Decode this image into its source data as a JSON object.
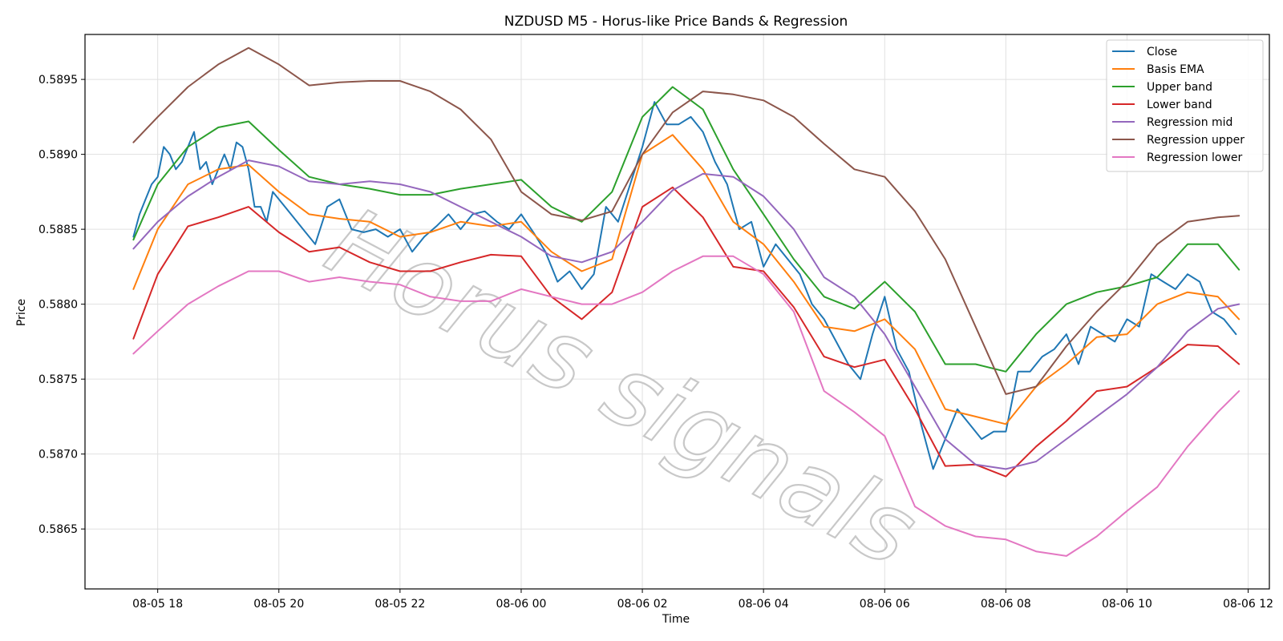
{
  "chart_data": {
    "type": "line",
    "title": "NZDUSD M5 - Horus-like Price Bands & Regression",
    "xlabel": "Time",
    "ylabel": "Price",
    "xlim_hours": [
      -1.2,
      18.35
    ],
    "ylim": [
      0.5861,
      0.5898
    ],
    "x_tick_labels": [
      "08-05 18",
      "08-05 20",
      "08-05 22",
      "08-06 00",
      "08-06 02",
      "08-06 04",
      "08-06 06",
      "08-06 08",
      "08-06 10",
      "08-06 12"
    ],
    "x_tick_hours": [
      0,
      2,
      4,
      6,
      8,
      10,
      12,
      14,
      16,
      18
    ],
    "y_ticks": [
      0.5865,
      0.587,
      0.5875,
      0.588,
      0.5885,
      0.589,
      0.5895
    ],
    "y_tick_labels": [
      "0.5865",
      "0.5870",
      "0.5875",
      "0.5880",
      "0.5885",
      "0.5890",
      "0.5895"
    ],
    "grid": true,
    "legend_position": "top-right",
    "watermark": "Horus signals",
    "series": [
      {
        "name": "Close",
        "color": "#1f77b4",
        "x": [
          -0.4,
          -0.3,
          -0.2,
          -0.1,
          0,
          0.1,
          0.2,
          0.3,
          0.4,
          0.5,
          0.6,
          0.7,
          0.8,
          0.9,
          1.0,
          1.1,
          1.2,
          1.3,
          1.4,
          1.5,
          1.6,
          1.7,
          1.8,
          1.9,
          2.0,
          2.2,
          2.4,
          2.6,
          2.8,
          3.0,
          3.2,
          3.4,
          3.6,
          3.8,
          4.0,
          4.2,
          4.4,
          4.6,
          4.8,
          5.0,
          5.2,
          5.4,
          5.6,
          5.8,
          6.0,
          6.2,
          6.4,
          6.6,
          6.8,
          7.0,
          7.2,
          7.4,
          7.6,
          7.8,
          8.0,
          8.2,
          8.4,
          8.6,
          8.8,
          9.0,
          9.2,
          9.4,
          9.6,
          9.8,
          10.0,
          10.2,
          10.4,
          10.6,
          10.8,
          11.0,
          11.2,
          11.4,
          11.6,
          11.8,
          12.0,
          12.2,
          12.4,
          12.6,
          12.8,
          13.0,
          13.2,
          13.4,
          13.6,
          13.8,
          14.0,
          14.2,
          14.4,
          14.6,
          14.8,
          15.0,
          15.2,
          15.4,
          15.6,
          15.8,
          16.0,
          16.2,
          16.4,
          16.6,
          16.8,
          17.0,
          17.2,
          17.4,
          17.6,
          17.8
        ],
        "values": [
          0.58845,
          0.5886,
          0.5887,
          0.5888,
          0.58885,
          0.58905,
          0.589,
          0.5889,
          0.58895,
          0.58905,
          0.58915,
          0.5889,
          0.58895,
          0.5888,
          0.5889,
          0.589,
          0.5889,
          0.58908,
          0.58905,
          0.5889,
          0.58865,
          0.58865,
          0.58855,
          0.58875,
          0.5887,
          0.5886,
          0.5885,
          0.5884,
          0.58865,
          0.5887,
          0.5885,
          0.58848,
          0.5885,
          0.58845,
          0.5885,
          0.58835,
          0.58845,
          0.58852,
          0.5886,
          0.5885,
          0.5886,
          0.58862,
          0.58855,
          0.5885,
          0.5886,
          0.58848,
          0.58835,
          0.58815,
          0.58822,
          0.5881,
          0.5882,
          0.58865,
          0.58855,
          0.5888,
          0.58905,
          0.58935,
          0.5892,
          0.5892,
          0.58925,
          0.58915,
          0.58895,
          0.5888,
          0.5885,
          0.58855,
          0.58825,
          0.5884,
          0.5883,
          0.5882,
          0.588,
          0.5879,
          0.58775,
          0.5876,
          0.5875,
          0.5878,
          0.58805,
          0.5877,
          0.58755,
          0.5872,
          0.5869,
          0.5871,
          0.5873,
          0.5872,
          0.5871,
          0.58715,
          0.58715,
          0.58755,
          0.58755,
          0.58765,
          0.5877,
          0.5878,
          0.5876,
          0.58785,
          0.5878,
          0.58775,
          0.5879,
          0.58785,
          0.5882,
          0.58815,
          0.5881,
          0.5882,
          0.58815,
          0.58795,
          0.5879,
          0.5878
        ]
      },
      {
        "name": "Basis EMA",
        "color": "#ff7f0e",
        "x": [
          -0.4,
          0,
          0.5,
          1.0,
          1.5,
          2.0,
          2.5,
          3.0,
          3.5,
          4.0,
          4.5,
          5.0,
          5.5,
          6.0,
          6.5,
          7.0,
          7.5,
          8.0,
          8.5,
          9.0,
          9.5,
          10.0,
          10.5,
          11.0,
          11.5,
          12.0,
          12.5,
          13.0,
          13.5,
          14.0,
          14.5,
          15.0,
          15.5,
          16.0,
          16.5,
          17.0,
          17.5,
          17.85
        ],
        "values": [
          0.5881,
          0.5885,
          0.5888,
          0.5889,
          0.58893,
          0.58875,
          0.5886,
          0.58857,
          0.58855,
          0.58845,
          0.58848,
          0.58855,
          0.58852,
          0.58855,
          0.58835,
          0.58822,
          0.5883,
          0.589,
          0.58913,
          0.5889,
          0.58855,
          0.5884,
          0.58815,
          0.58785,
          0.58782,
          0.5879,
          0.5877,
          0.5873,
          0.58725,
          0.5872,
          0.58745,
          0.5876,
          0.58778,
          0.5878,
          0.588,
          0.58808,
          0.58805,
          0.5879
        ]
      },
      {
        "name": "Upper band",
        "color": "#2ca02c",
        "x": [
          -0.4,
          0,
          0.5,
          1.0,
          1.5,
          2.0,
          2.5,
          3.0,
          3.5,
          4.0,
          4.5,
          5.0,
          5.5,
          6.0,
          6.5,
          7.0,
          7.5,
          8.0,
          8.5,
          9.0,
          9.5,
          10.0,
          10.5,
          11.0,
          11.5,
          12.0,
          12.5,
          13.0,
          13.5,
          14.0,
          14.5,
          15.0,
          15.5,
          16.0,
          16.5,
          17.0,
          17.5,
          17.85
        ],
        "values": [
          0.58843,
          0.5888,
          0.58905,
          0.58918,
          0.58922,
          0.58903,
          0.58885,
          0.5888,
          0.58877,
          0.58873,
          0.58873,
          0.58877,
          0.5888,
          0.58883,
          0.58865,
          0.58855,
          0.58875,
          0.58925,
          0.58945,
          0.5893,
          0.5889,
          0.5886,
          0.5883,
          0.58805,
          0.58797,
          0.58815,
          0.58795,
          0.5876,
          0.5876,
          0.58755,
          0.5878,
          0.588,
          0.58808,
          0.58812,
          0.58818,
          0.5884,
          0.5884,
          0.58823
        ]
      },
      {
        "name": "Lower band",
        "color": "#d62728",
        "x": [
          -0.4,
          0,
          0.5,
          1.0,
          1.5,
          2.0,
          2.5,
          3.0,
          3.5,
          4.0,
          4.5,
          5.0,
          5.5,
          6.0,
          6.5,
          7.0,
          7.5,
          8.0,
          8.5,
          9.0,
          9.5,
          10.0,
          10.5,
          11.0,
          11.5,
          12.0,
          12.5,
          13.0,
          13.5,
          14.0,
          14.5,
          15.0,
          15.5,
          16.0,
          16.5,
          17.0,
          17.5,
          17.85
        ],
        "values": [
          0.58777,
          0.5882,
          0.58852,
          0.58858,
          0.58865,
          0.58848,
          0.58835,
          0.58838,
          0.58828,
          0.58822,
          0.58822,
          0.58828,
          0.58833,
          0.58832,
          0.58805,
          0.5879,
          0.58808,
          0.58865,
          0.58878,
          0.58858,
          0.58825,
          0.58822,
          0.58798,
          0.58765,
          0.58758,
          0.58763,
          0.5873,
          0.58692,
          0.58693,
          0.58685,
          0.58705,
          0.58722,
          0.58742,
          0.58745,
          0.58758,
          0.58773,
          0.58772,
          0.5876
        ]
      },
      {
        "name": "Regression mid",
        "color": "#9467bd",
        "x": [
          -0.4,
          0,
          0.5,
          1.0,
          1.5,
          2.0,
          2.5,
          3.0,
          3.5,
          4.0,
          4.5,
          5.0,
          5.5,
          6.0,
          6.5,
          7.0,
          7.5,
          8.0,
          8.5,
          9.0,
          9.5,
          10.0,
          10.5,
          11.0,
          11.5,
          12.0,
          12.5,
          13.0,
          13.5,
          14.0,
          14.5,
          15.0,
          15.5,
          16.0,
          16.5,
          17.0,
          17.5,
          17.85
        ],
        "values": [
          0.58837,
          0.58855,
          0.58872,
          0.58885,
          0.58896,
          0.58892,
          0.58882,
          0.5888,
          0.58882,
          0.5888,
          0.58875,
          0.58865,
          0.58855,
          0.58845,
          0.58832,
          0.58828,
          0.58835,
          0.58855,
          0.58876,
          0.58887,
          0.58885,
          0.58872,
          0.5885,
          0.58818,
          0.58805,
          0.5878,
          0.58745,
          0.5871,
          0.58693,
          0.5869,
          0.58695,
          0.5871,
          0.58725,
          0.5874,
          0.58758,
          0.58782,
          0.58797,
          0.588
        ]
      },
      {
        "name": "Regression upper",
        "color": "#8c564b",
        "x": [
          -0.4,
          0,
          0.5,
          1.0,
          1.5,
          2.0,
          2.5,
          3.0,
          3.5,
          4.0,
          4.5,
          5.0,
          5.5,
          6.0,
          6.5,
          7.0,
          7.5,
          8.0,
          8.5,
          9.0,
          9.5,
          10.0,
          10.5,
          11.0,
          11.5,
          12.0,
          12.5,
          13.0,
          13.5,
          14.0,
          14.5,
          15.0,
          15.5,
          16.0,
          16.5,
          17.0,
          17.5,
          17.85
        ],
        "values": [
          0.58908,
          0.58925,
          0.58945,
          0.5896,
          0.58971,
          0.5896,
          0.58946,
          0.58948,
          0.58949,
          0.58949,
          0.58942,
          0.5893,
          0.5891,
          0.58875,
          0.5886,
          0.58856,
          0.58862,
          0.589,
          0.58928,
          0.58942,
          0.5894,
          0.58936,
          0.58925,
          0.58907,
          0.5889,
          0.58885,
          0.58862,
          0.5883,
          0.58785,
          0.5874,
          0.58745,
          0.58772,
          0.58795,
          0.58815,
          0.5884,
          0.58855,
          0.58858,
          0.58859
        ]
      },
      {
        "name": "Regression lower",
        "color": "#e377c2",
        "x": [
          -0.4,
          0,
          0.5,
          1.0,
          1.5,
          2.0,
          2.5,
          3.0,
          3.5,
          4.0,
          4.5,
          5.0,
          5.5,
          6.0,
          6.5,
          7.0,
          7.5,
          8.0,
          8.5,
          9.0,
          9.5,
          10.0,
          10.5,
          11.0,
          11.5,
          12.0,
          12.5,
          13.0,
          13.5,
          14.0,
          14.5,
          15.0,
          15.5,
          16.0,
          16.5,
          17.0,
          17.5,
          17.85
        ],
        "values": [
          0.58767,
          0.58782,
          0.588,
          0.58812,
          0.58822,
          0.58822,
          0.58815,
          0.58818,
          0.58815,
          0.58813,
          0.58805,
          0.58802,
          0.58802,
          0.5881,
          0.58805,
          0.588,
          0.588,
          0.58808,
          0.58822,
          0.58832,
          0.58832,
          0.5882,
          0.58795,
          0.58742,
          0.58728,
          0.58712,
          0.58665,
          0.58652,
          0.58645,
          0.58643,
          0.58635,
          0.58632,
          0.58645,
          0.58662,
          0.58678,
          0.58705,
          0.58728,
          0.58742
        ]
      }
    ]
  }
}
